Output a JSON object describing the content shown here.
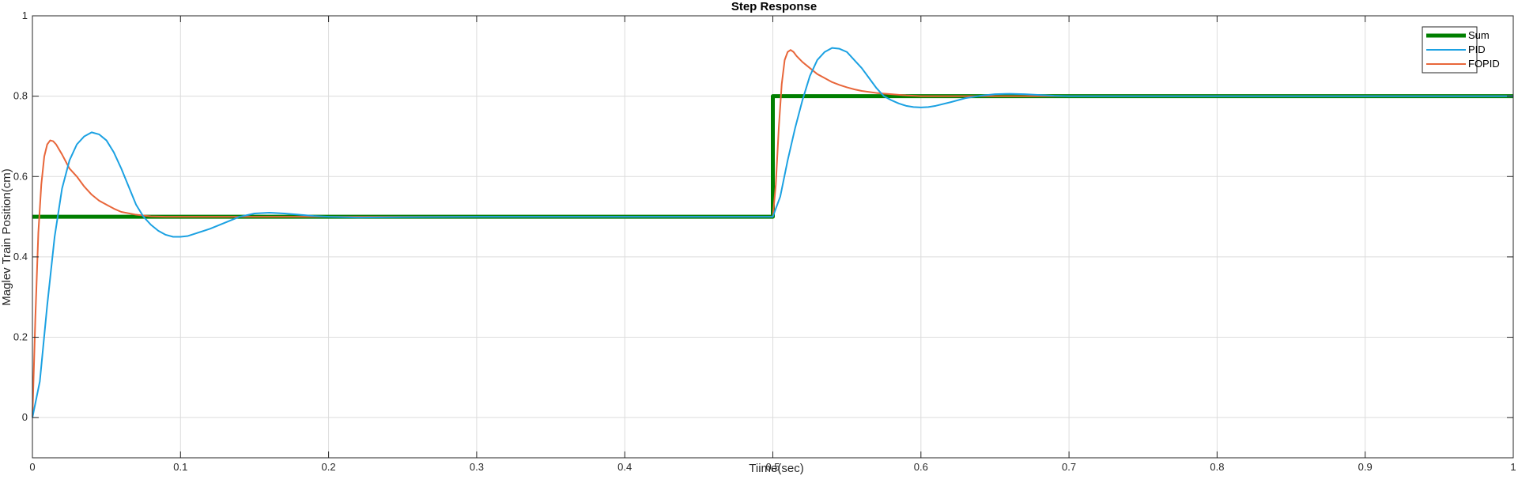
{
  "chart_data": {
    "type": "line",
    "title": "Step Response",
    "xlabel": "Tiime(sec)",
    "ylabel": "Maglev Train Position(cm)",
    "xlim": [
      0,
      1
    ],
    "ylim": [
      -0.1,
      1.0
    ],
    "xticks": [
      0,
      0.1,
      0.2,
      0.3,
      0.4,
      0.5,
      0.6,
      0.7,
      0.8,
      0.9,
      1
    ],
    "xtick_labels": [
      "0",
      "0.1",
      "0.2",
      "0.3",
      "0.4",
      "0.5",
      "0.6",
      "0.7",
      "0.8",
      "0.9",
      "1"
    ],
    "yticks": [
      0,
      0.2,
      0.4,
      0.6,
      0.8,
      1
    ],
    "ytick_labels": [
      "0",
      "0.2",
      "0.4",
      "0.6",
      "0.8",
      "1"
    ],
    "grid": true,
    "legend_position": "top-right",
    "series": [
      {
        "name": "Sum",
        "color": "#007F00",
        "line_width": "thick",
        "x": [
          0,
          0.5,
          0.5,
          1
        ],
        "y": [
          0.5,
          0.5,
          0.8,
          0.8
        ]
      },
      {
        "name": "PID",
        "color": "#1BA1E2",
        "line_width": "thin",
        "x": [
          0,
          0.005,
          0.01,
          0.015,
          0.02,
          0.025,
          0.03,
          0.035,
          0.04,
          0.045,
          0.05,
          0.055,
          0.06,
          0.065,
          0.07,
          0.075,
          0.08,
          0.085,
          0.09,
          0.095,
          0.1,
          0.105,
          0.11,
          0.12,
          0.13,
          0.14,
          0.15,
          0.16,
          0.17,
          0.18,
          0.19,
          0.2,
          0.22,
          0.25,
          0.3,
          0.35,
          0.4,
          0.45,
          0.5,
          0.505,
          0.51,
          0.515,
          0.52,
          0.525,
          0.53,
          0.535,
          0.54,
          0.545,
          0.55,
          0.555,
          0.56,
          0.565,
          0.57,
          0.575,
          0.58,
          0.585,
          0.59,
          0.595,
          0.6,
          0.605,
          0.61,
          0.62,
          0.63,
          0.64,
          0.65,
          0.66,
          0.67,
          0.68,
          0.69,
          0.7,
          0.72,
          0.75,
          0.8,
          0.85,
          0.9,
          0.95,
          1.0
        ],
        "y": [
          0,
          0.09,
          0.28,
          0.45,
          0.57,
          0.64,
          0.68,
          0.7,
          0.71,
          0.705,
          0.69,
          0.66,
          0.62,
          0.575,
          0.53,
          0.5,
          0.48,
          0.465,
          0.455,
          0.45,
          0.45,
          0.452,
          0.458,
          0.47,
          0.485,
          0.5,
          0.508,
          0.51,
          0.508,
          0.505,
          0.502,
          0.5,
          0.498,
          0.499,
          0.5,
          0.5,
          0.5,
          0.5,
          0.5,
          0.55,
          0.64,
          0.72,
          0.79,
          0.85,
          0.89,
          0.91,
          0.92,
          0.918,
          0.91,
          0.89,
          0.87,
          0.845,
          0.82,
          0.8,
          0.79,
          0.782,
          0.776,
          0.773,
          0.772,
          0.773,
          0.776,
          0.785,
          0.795,
          0.801,
          0.805,
          0.806,
          0.805,
          0.803,
          0.801,
          0.8,
          0.8,
          0.8,
          0.8,
          0.8,
          0.8,
          0.8,
          0.8
        ]
      },
      {
        "name": "FOPID",
        "color": "#E8663A",
        "line_width": "thin",
        "x": [
          0,
          0.002,
          0.004,
          0.006,
          0.008,
          0.01,
          0.012,
          0.014,
          0.016,
          0.02,
          0.025,
          0.03,
          0.035,
          0.04,
          0.045,
          0.05,
          0.055,
          0.06,
          0.07,
          0.08,
          0.09,
          0.1,
          0.12,
          0.15,
          0.2,
          0.3,
          0.4,
          0.5,
          0.502,
          0.504,
          0.506,
          0.508,
          0.51,
          0.512,
          0.514,
          0.516,
          0.52,
          0.525,
          0.53,
          0.535,
          0.54,
          0.545,
          0.55,
          0.555,
          0.56,
          0.57,
          0.58,
          0.59,
          0.6,
          0.62,
          0.65,
          0.7,
          0.8,
          0.9,
          1.0
        ],
        "y": [
          0,
          0.25,
          0.46,
          0.58,
          0.65,
          0.68,
          0.69,
          0.688,
          0.68,
          0.655,
          0.62,
          0.6,
          0.575,
          0.555,
          0.54,
          0.53,
          0.52,
          0.512,
          0.505,
          0.501,
          0.5,
          0.5,
          0.5,
          0.5,
          0.5,
          0.5,
          0.5,
          0.5,
          0.58,
          0.72,
          0.83,
          0.89,
          0.91,
          0.915,
          0.91,
          0.9,
          0.885,
          0.87,
          0.855,
          0.845,
          0.835,
          0.828,
          0.822,
          0.817,
          0.813,
          0.808,
          0.805,
          0.802,
          0.8,
          0.8,
          0.8,
          0.8,
          0.8,
          0.8,
          0.8
        ]
      }
    ]
  }
}
